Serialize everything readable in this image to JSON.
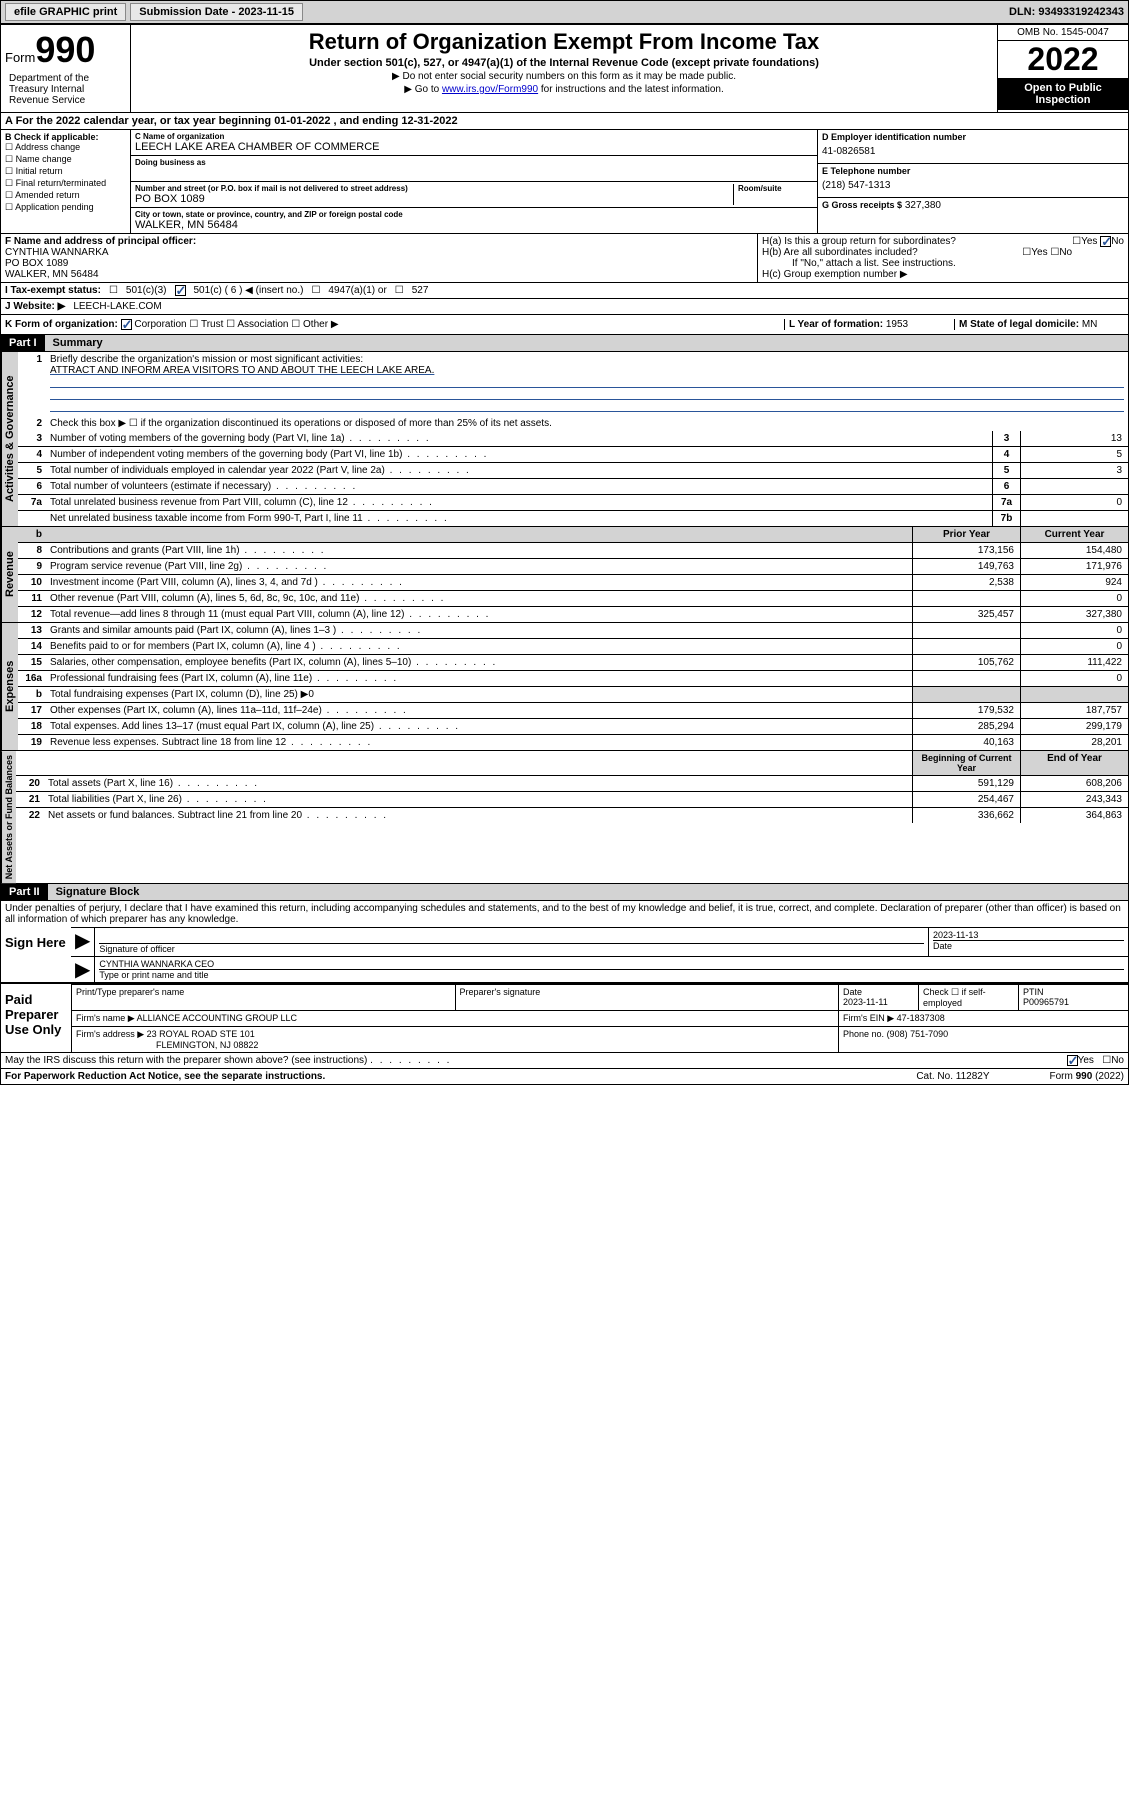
{
  "header": {
    "efile": "efile GRAPHIC print",
    "submission_label": "Submission Date - 2023-11-15",
    "dln": "DLN: 93493319242343"
  },
  "top": {
    "form_label": "Form",
    "form_num": "990",
    "title": "Return of Organization Exempt From Income Tax",
    "subtitle": "Under section 501(c), 527, or 4947(a)(1) of the Internal Revenue Code (except private foundations)",
    "note1": "▶ Do not enter social security numbers on this form as it may be made public.",
    "note2_pre": "▶ Go to ",
    "note2_link": "www.irs.gov/Form990",
    "note2_post": " for instructions and the latest information.",
    "omb": "OMB No. 1545-0047",
    "year": "2022",
    "open": "Open to Public Inspection",
    "dept": "Department of the Treasury Internal Revenue Service"
  },
  "a": {
    "text": "A For the 2022 calendar year, or tax year beginning 01-01-2022   , and ending 12-31-2022"
  },
  "b": {
    "label": "B Check if applicable:",
    "opts": [
      "Address change",
      "Name change",
      "Initial return",
      "Final return/terminated",
      "Amended return",
      "Application pending"
    ]
  },
  "c": {
    "label": "C Name of organization",
    "name": "LEECH LAKE AREA CHAMBER OF COMMERCE",
    "dba_label": "Doing business as",
    "addr_label": "Number and street (or P.O. box if mail is not delivered to street address)",
    "room_label": "Room/suite",
    "addr": "PO BOX 1089",
    "city_label": "City or town, state or province, country, and ZIP or foreign postal code",
    "city": "WALKER, MN  56484"
  },
  "d": {
    "label": "D Employer identification number",
    "val": "41-0826581"
  },
  "e": {
    "label": "E Telephone number",
    "val": "(218) 547-1313"
  },
  "g": {
    "label": "G Gross receipts $",
    "val": "327,380"
  },
  "f": {
    "label": "F Name and address of principal officer:",
    "name": "CYNTHIA WANNARKA",
    "addr1": "PO BOX 1089",
    "addr2": "WALKER, MN  56484"
  },
  "h": {
    "a": "H(a)  Is this a group return for subordinates?",
    "a_yes": "Yes",
    "a_no": "No",
    "b": "H(b)  Are all subordinates included?",
    "b_yes": "Yes",
    "b_no": "No",
    "b_note": "If \"No,\" attach a list. See instructions.",
    "c": "H(c)  Group exemption number ▶"
  },
  "i": {
    "label": "I   Tax-exempt status:",
    "opt1": "501(c)(3)",
    "opt2": "501(c) ( 6 ) ◀ (insert no.)",
    "opt3": "4947(a)(1) or",
    "opt4": "527"
  },
  "j": {
    "label": "J   Website: ▶",
    "val": "LEECH-LAKE.COM"
  },
  "k": {
    "label": "K Form of organization:",
    "opts": [
      "Corporation",
      "Trust",
      "Association",
      "Other ▶"
    ]
  },
  "l": {
    "label": "L Year of formation:",
    "val": "1953"
  },
  "m": {
    "label": "M State of legal domicile:",
    "val": "MN"
  },
  "part1": {
    "hdr": "Part I",
    "title": "Summary",
    "q1": "Briefly describe the organization's mission or most significant activities:",
    "mission": "ATTRACT AND INFORM AREA VISITORS TO AND ABOUT THE LEECH LAKE AREA.",
    "q2": "Check this box ▶ ☐  if the organization discontinued its operations or disposed of more than 25% of its net assets.",
    "vlabel_gov": "Activities & Governance",
    "vlabel_rev": "Revenue",
    "vlabel_exp": "Expenses",
    "vlabel_net": "Net Assets or Fund Balances",
    "prior": "Prior Year",
    "current": "Current Year",
    "begin": "Beginning of Current Year",
    "end": "End of Year",
    "gov_lines": [
      {
        "n": "3",
        "t": "Number of voting members of the governing body (Part VI, line 1a)",
        "box": "3",
        "v": "13"
      },
      {
        "n": "4",
        "t": "Number of independent voting members of the governing body (Part VI, line 1b)",
        "box": "4",
        "v": "5"
      },
      {
        "n": "5",
        "t": "Total number of individuals employed in calendar year 2022 (Part V, line 2a)",
        "box": "5",
        "v": "3"
      },
      {
        "n": "6",
        "t": "Total number of volunteers (estimate if necessary)",
        "box": "6",
        "v": ""
      },
      {
        "n": "7a",
        "t": "Total unrelated business revenue from Part VIII, column (C), line 12",
        "box": "7a",
        "v": "0"
      },
      {
        "n": "",
        "t": "Net unrelated business taxable income from Form 990-T, Part I, line 11",
        "box": "7b",
        "v": ""
      }
    ],
    "rev_lines": [
      {
        "n": "8",
        "t": "Contributions and grants (Part VIII, line 1h)",
        "p": "173,156",
        "c": "154,480"
      },
      {
        "n": "9",
        "t": "Program service revenue (Part VIII, line 2g)",
        "p": "149,763",
        "c": "171,976"
      },
      {
        "n": "10",
        "t": "Investment income (Part VIII, column (A), lines 3, 4, and 7d )",
        "p": "2,538",
        "c": "924"
      },
      {
        "n": "11",
        "t": "Other revenue (Part VIII, column (A), lines 5, 6d, 8c, 9c, 10c, and 11e)",
        "p": "",
        "c": "0"
      },
      {
        "n": "12",
        "t": "Total revenue—add lines 8 through 11 (must equal Part VIII, column (A), line 12)",
        "p": "325,457",
        "c": "327,380"
      }
    ],
    "exp_lines": [
      {
        "n": "13",
        "t": "Grants and similar amounts paid (Part IX, column (A), lines 1–3 )",
        "p": "",
        "c": "0"
      },
      {
        "n": "14",
        "t": "Benefits paid to or for members (Part IX, column (A), line 4 )",
        "p": "",
        "c": "0"
      },
      {
        "n": "15",
        "t": "Salaries, other compensation, employee benefits (Part IX, column (A), lines 5–10)",
        "p": "105,762",
        "c": "111,422"
      },
      {
        "n": "16a",
        "t": "Professional fundraising fees (Part IX, column (A), line 11e)",
        "p": "",
        "c": "0"
      },
      {
        "n": "b",
        "t": "Total fundraising expenses (Part IX, column (D), line 25) ▶0",
        "p": "—",
        "c": "—"
      },
      {
        "n": "17",
        "t": "Other expenses (Part IX, column (A), lines 11a–11d, 11f–24e)",
        "p": "179,532",
        "c": "187,757"
      },
      {
        "n": "18",
        "t": "Total expenses. Add lines 13–17 (must equal Part IX, column (A), line 25)",
        "p": "285,294",
        "c": "299,179"
      },
      {
        "n": "19",
        "t": "Revenue less expenses. Subtract line 18 from line 12",
        "p": "40,163",
        "c": "28,201"
      }
    ],
    "net_lines": [
      {
        "n": "20",
        "t": "Total assets (Part X, line 16)",
        "p": "591,129",
        "c": "608,206"
      },
      {
        "n": "21",
        "t": "Total liabilities (Part X, line 26)",
        "p": "254,467",
        "c": "243,343"
      },
      {
        "n": "22",
        "t": "Net assets or fund balances. Subtract line 21 from line 20",
        "p": "336,662",
        "c": "364,863"
      }
    ]
  },
  "part2": {
    "hdr": "Part II",
    "title": "Signature Block",
    "disclaimer": "Under penalties of perjury, I declare that I have examined this return, including accompanying schedules and statements, and to the best of my knowledge and belief, it is true, correct, and complete. Declaration of preparer (other than officer) is based on all information of which preparer has any knowledge.",
    "sign_here": "Sign Here",
    "sig_officer": "Signature of officer",
    "sig_date": "2023-11-13",
    "date_label": "Date",
    "officer_name": "CYNTHIA WANNARKA CEO",
    "type_name": "Type or print name and title",
    "paid": "Paid Preparer Use Only",
    "prep_name_label": "Print/Type preparer's name",
    "prep_sig_label": "Preparer's signature",
    "prep_date": "2023-11-11",
    "check_self": "Check ☐ if self-employed",
    "ptin_label": "PTIN",
    "ptin": "P00965791",
    "firm_name_label": "Firm's name   ▶",
    "firm_name": "ALLIANCE ACCOUNTING GROUP LLC",
    "firm_ein_label": "Firm's EIN ▶",
    "firm_ein": "47-1837308",
    "firm_addr_label": "Firm's address ▶",
    "firm_addr1": "23 ROYAL ROAD STE 101",
    "firm_addr2": "FLEMINGTON, NJ  08822",
    "phone_label": "Phone no.",
    "phone": "(908) 751-7090",
    "may_irs": "May the IRS discuss this return with the preparer shown above? (see instructions)",
    "yes": "Yes",
    "no": "No"
  },
  "footer": {
    "paperwork": "For Paperwork Reduction Act Notice, see the separate instructions.",
    "cat": "Cat. No. 11282Y",
    "form": "Form 990 (2022)"
  }
}
